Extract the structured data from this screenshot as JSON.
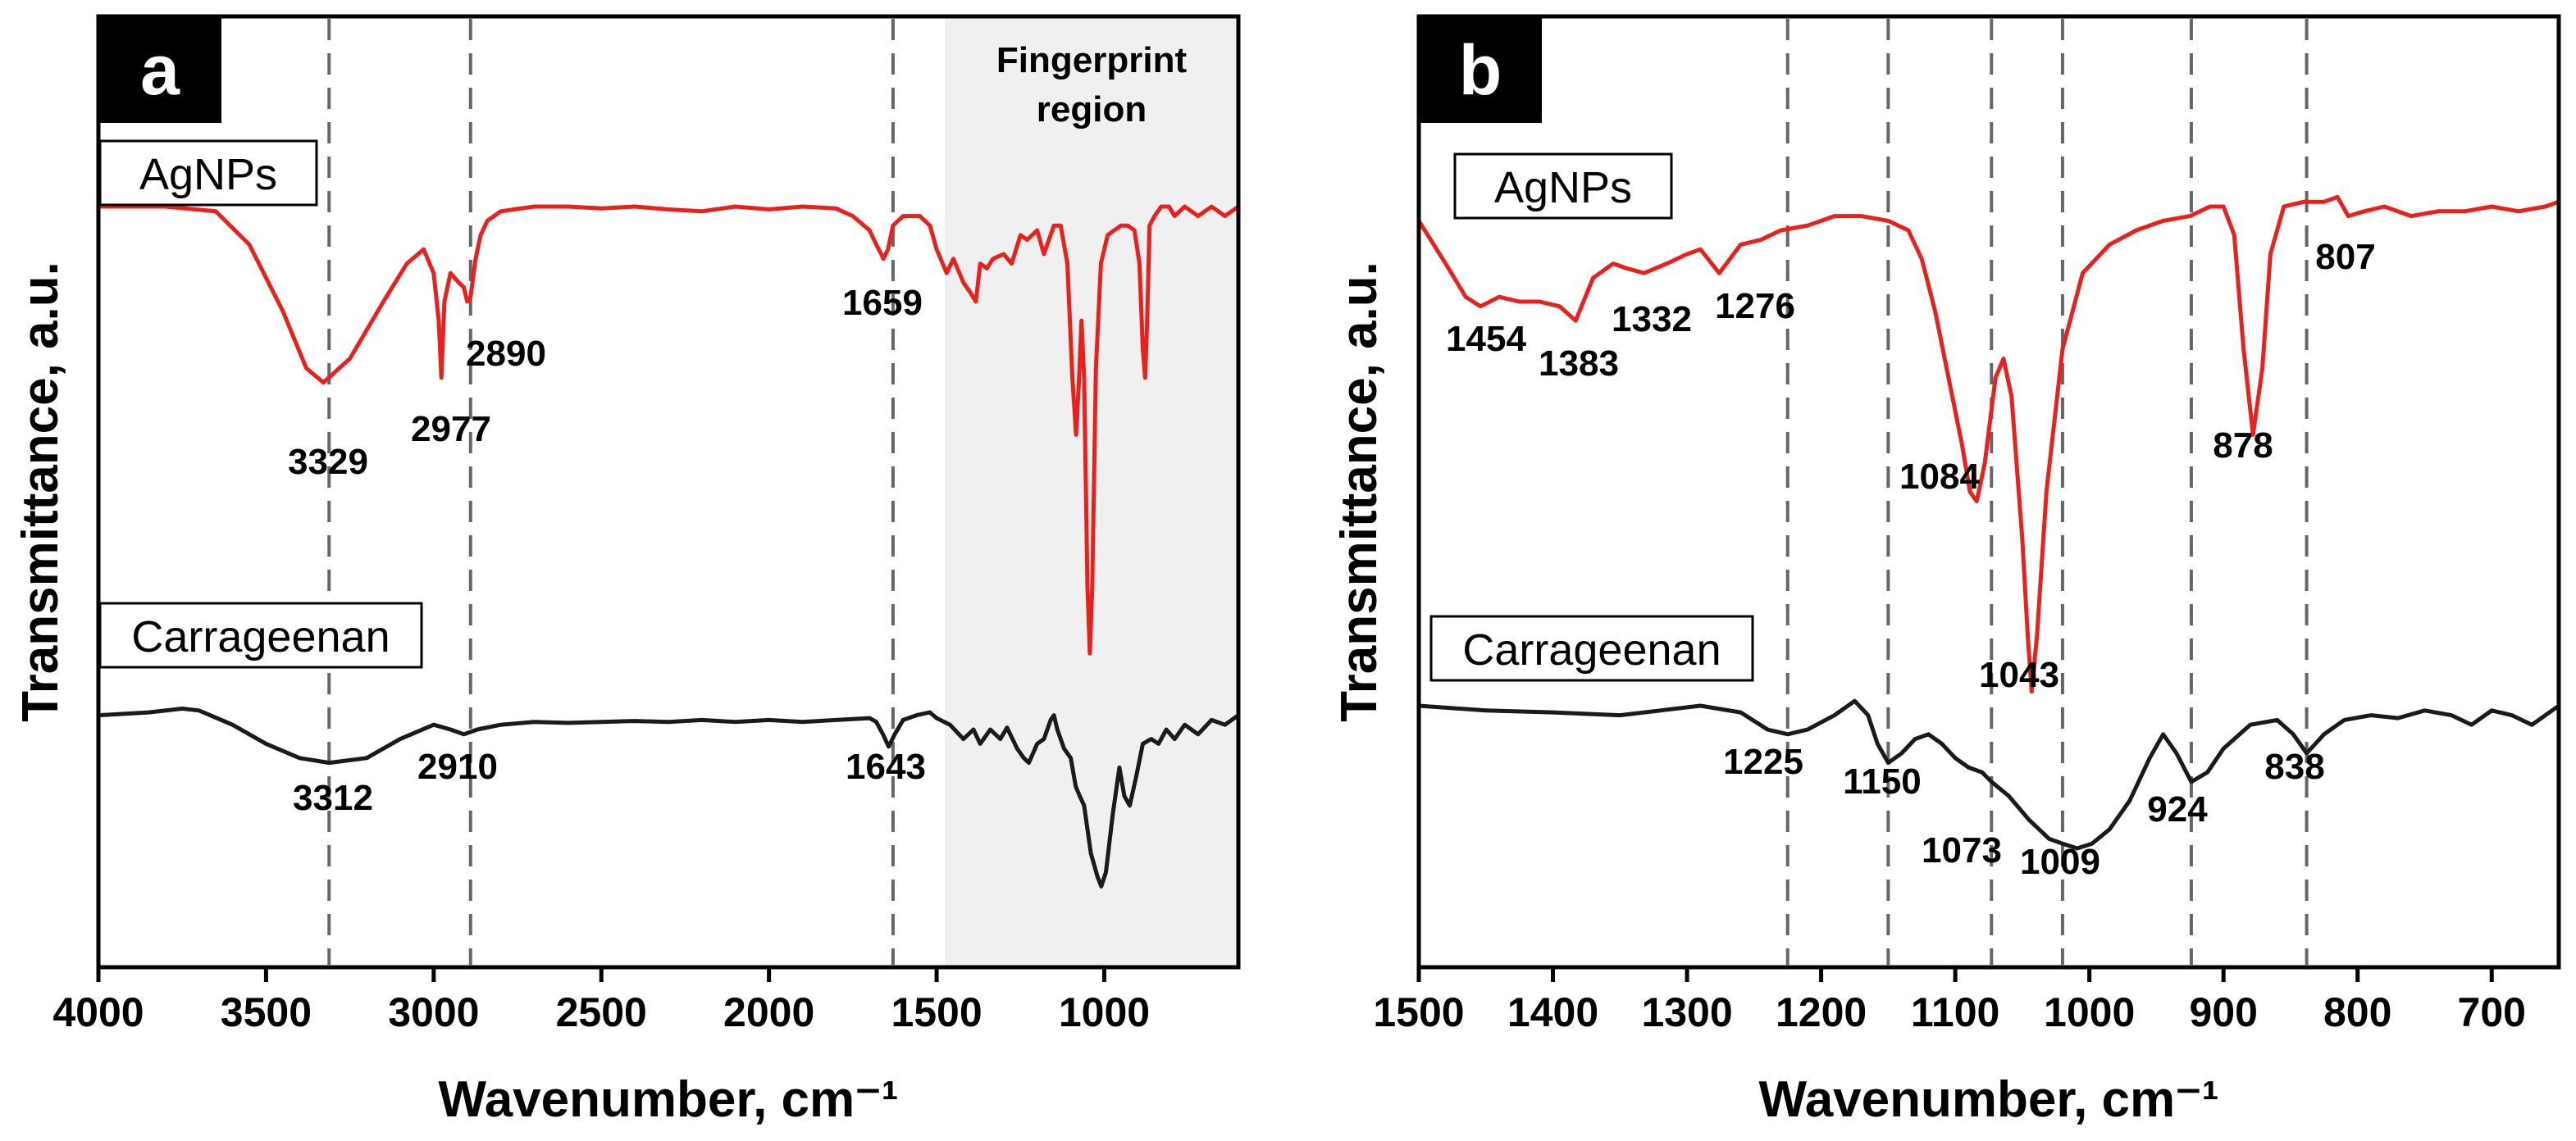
{
  "chart_data": [
    {
      "type": "line",
      "panel": "a",
      "xlabel": "Wavenumber, cm⁻¹",
      "ylabel": "Transmittance, a.u.",
      "xlim": [
        4000,
        600
      ],
      "ylim": [
        0,
        1
      ],
      "xticks": [
        4000,
        3500,
        3000,
        2500,
        2000,
        1500,
        1000
      ],
      "xtick_labels": [
        "4000",
        "3500",
        "3000",
        "2500",
        "2000",
        "1500",
        "1000"
      ],
      "region": {
        "from": 1500,
        "to": 600,
        "label_line1": "Fingerprint",
        "label_line2": "region"
      },
      "dashed_lines": [
        3312,
        2890,
        1630
      ],
      "series": [
        {
          "name": "AgNPs",
          "color": "#e8211c",
          "x": [
            4000,
            3800,
            3650,
            3550,
            3450,
            3380,
            3329,
            3250,
            3150,
            3080,
            3030,
            3000,
            2985,
            2977,
            2968,
            2950,
            2925,
            2910,
            2900,
            2890,
            2875,
            2860,
            2840,
            2800,
            2700,
            2600,
            2500,
            2400,
            2300,
            2200,
            2100,
            2000,
            1900,
            1800,
            1750,
            1700,
            1680,
            1665,
            1659,
            1645,
            1630,
            1600,
            1550,
            1520,
            1500,
            1470,
            1450,
            1420,
            1400,
            1383,
            1370,
            1350,
            1332,
            1300,
            1276,
            1250,
            1230,
            1200,
            1180,
            1150,
            1130,
            1110,
            1095,
            1084,
            1075,
            1068,
            1060,
            1050,
            1043,
            1036,
            1025,
            1010,
            990,
            970,
            950,
            930,
            910,
            895,
            885,
            878,
            872,
            865,
            850,
            830,
            807,
            790,
            760,
            720,
            680,
            640,
            600
          ],
          "y": [
            0.8,
            0.8,
            0.795,
            0.76,
            0.69,
            0.63,
            0.615,
            0.64,
            0.7,
            0.74,
            0.755,
            0.73,
            0.68,
            0.62,
            0.7,
            0.73,
            0.72,
            0.715,
            0.7,
            0.705,
            0.745,
            0.77,
            0.785,
            0.795,
            0.8,
            0.8,
            0.798,
            0.8,
            0.797,
            0.795,
            0.8,
            0.797,
            0.8,
            0.798,
            0.79,
            0.775,
            0.76,
            0.75,
            0.745,
            0.755,
            0.78,
            0.79,
            0.79,
            0.78,
            0.755,
            0.73,
            0.745,
            0.72,
            0.71,
            0.7,
            0.74,
            0.735,
            0.745,
            0.75,
            0.74,
            0.77,
            0.765,
            0.775,
            0.75,
            0.78,
            0.78,
            0.74,
            0.62,
            0.56,
            0.62,
            0.68,
            0.62,
            0.4,
            0.33,
            0.4,
            0.63,
            0.74,
            0.77,
            0.775,
            0.78,
            0.78,
            0.775,
            0.74,
            0.65,
            0.62,
            0.68,
            0.78,
            0.79,
            0.8,
            0.8,
            0.79,
            0.8,
            0.79,
            0.8,
            0.79,
            0.8
          ]
        },
        {
          "name": "Carrageenan",
          "color": "#1a1a1a",
          "x": [
            4000,
            3850,
            3750,
            3700,
            3600,
            3500,
            3400,
            3312,
            3200,
            3100,
            3000,
            2950,
            2910,
            2870,
            2800,
            2700,
            2600,
            2500,
            2400,
            2300,
            2200,
            2100,
            2000,
            1900,
            1800,
            1700,
            1680,
            1660,
            1643,
            1625,
            1600,
            1560,
            1520,
            1500,
            1460,
            1420,
            1390,
            1370,
            1340,
            1310,
            1290,
            1260,
            1240,
            1225,
            1200,
            1180,
            1160,
            1150,
            1140,
            1120,
            1100,
            1085,
            1073,
            1060,
            1040,
            1020,
            1009,
            995,
            975,
            955,
            940,
            924,
            905,
            885,
            860,
            838,
            815,
            790,
            760,
            720,
            680,
            640,
            600
          ],
          "y": [
            0.265,
            0.268,
            0.272,
            0.27,
            0.255,
            0.235,
            0.22,
            0.215,
            0.22,
            0.24,
            0.255,
            0.25,
            0.245,
            0.25,
            0.255,
            0.258,
            0.257,
            0.258,
            0.259,
            0.258,
            0.26,
            0.258,
            0.26,
            0.258,
            0.26,
            0.262,
            0.258,
            0.245,
            0.232,
            0.245,
            0.26,
            0.265,
            0.268,
            0.262,
            0.255,
            0.24,
            0.25,
            0.235,
            0.25,
            0.24,
            0.252,
            0.23,
            0.22,
            0.215,
            0.235,
            0.24,
            0.26,
            0.265,
            0.25,
            0.23,
            0.22,
            0.19,
            0.18,
            0.17,
            0.12,
            0.095,
            0.085,
            0.1,
            0.16,
            0.21,
            0.18,
            0.17,
            0.2,
            0.235,
            0.24,
            0.235,
            0.25,
            0.24,
            0.255,
            0.245,
            0.26,
            0.255,
            0.265
          ]
        }
      ],
      "annotations": [
        {
          "text": "3329",
          "series": "AgNPs"
        },
        {
          "text": "2977",
          "series": "AgNPs"
        },
        {
          "text": "2890",
          "series": "AgNPs"
        },
        {
          "text": "1659",
          "series": "AgNPs"
        },
        {
          "text": "3312",
          "series": "Carrageenan"
        },
        {
          "text": "2910",
          "series": "Carrageenan"
        },
        {
          "text": "1643",
          "series": "Carrageenan"
        }
      ]
    },
    {
      "type": "line",
      "panel": "b",
      "xlabel": "Wavenumber, cm⁻¹",
      "ylabel": "Transmittance, a.u.",
      "xlim": [
        1500,
        650
      ],
      "ylim": [
        0,
        1
      ],
      "xticks": [
        1500,
        1400,
        1300,
        1200,
        1100,
        1000,
        900,
        800,
        700
      ],
      "xtick_labels": [
        "1500",
        "1400",
        "1300",
        "1200",
        "1100",
        "1000",
        "900",
        "800",
        "700"
      ],
      "dashed_lines": [
        1225,
        1150,
        1073,
        1020,
        924,
        838
      ],
      "series": [
        {
          "name": "AgNPs",
          "color": "#e8211c",
          "x": [
            1500,
            1480,
            1465,
            1454,
            1440,
            1425,
            1410,
            1395,
            1383,
            1370,
            1355,
            1345,
            1332,
            1315,
            1300,
            1290,
            1276,
            1260,
            1245,
            1230,
            1210,
            1190,
            1170,
            1150,
            1135,
            1125,
            1115,
            1105,
            1095,
            1089,
            1084,
            1078,
            1070,
            1064,
            1058,
            1050,
            1046,
            1043,
            1039,
            1032,
            1020,
            1005,
            985,
            965,
            945,
            925,
            910,
            900,
            892,
            885,
            878,
            871,
            865,
            855,
            840,
            825,
            815,
            807,
            795,
            780,
            760,
            740,
            720,
            700,
            680,
            660,
            650
          ],
          "y": [
            0.785,
            0.74,
            0.705,
            0.695,
            0.705,
            0.7,
            0.7,
            0.695,
            0.68,
            0.725,
            0.74,
            0.735,
            0.73,
            0.74,
            0.75,
            0.755,
            0.73,
            0.76,
            0.765,
            0.775,
            0.78,
            0.79,
            0.79,
            0.785,
            0.775,
            0.745,
            0.69,
            0.62,
            0.55,
            0.5,
            0.49,
            0.53,
            0.62,
            0.64,
            0.6,
            0.45,
            0.35,
            0.29,
            0.35,
            0.5,
            0.65,
            0.73,
            0.76,
            0.775,
            0.785,
            0.79,
            0.8,
            0.8,
            0.77,
            0.65,
            0.56,
            0.63,
            0.75,
            0.8,
            0.805,
            0.805,
            0.81,
            0.79,
            0.795,
            0.8,
            0.79,
            0.795,
            0.795,
            0.8,
            0.795,
            0.8,
            0.805
          ]
        },
        {
          "name": "Carrageenan",
          "color": "#1a1a1a",
          "x": [
            1500,
            1450,
            1400,
            1350,
            1320,
            1290,
            1260,
            1240,
            1225,
            1210,
            1190,
            1175,
            1165,
            1158,
            1150,
            1140,
            1130,
            1120,
            1110,
            1100,
            1090,
            1080,
            1073,
            1060,
            1045,
            1030,
            1020,
            1009,
            998,
            985,
            970,
            955,
            945,
            935,
            924,
            912,
            900,
            880,
            860,
            848,
            838,
            825,
            810,
            790,
            770,
            750,
            730,
            715,
            700,
            685,
            670,
            650
          ],
          "y": [
            0.275,
            0.27,
            0.268,
            0.265,
            0.27,
            0.275,
            0.268,
            0.25,
            0.245,
            0.25,
            0.265,
            0.28,
            0.265,
            0.235,
            0.215,
            0.225,
            0.24,
            0.245,
            0.235,
            0.22,
            0.21,
            0.205,
            0.195,
            0.18,
            0.155,
            0.135,
            0.13,
            0.125,
            0.13,
            0.145,
            0.175,
            0.22,
            0.245,
            0.225,
            0.195,
            0.205,
            0.23,
            0.255,
            0.26,
            0.245,
            0.225,
            0.245,
            0.26,
            0.265,
            0.262,
            0.27,
            0.265,
            0.255,
            0.27,
            0.265,
            0.255,
            0.275
          ]
        }
      ],
      "annotations": [
        {
          "text": "1454",
          "series": "AgNPs"
        },
        {
          "text": "1383",
          "series": "AgNPs"
        },
        {
          "text": "1332",
          "series": "AgNPs"
        },
        {
          "text": "1276",
          "series": "AgNPs"
        },
        {
          "text": "1084",
          "series": "AgNPs"
        },
        {
          "text": "1043",
          "series": "AgNPs"
        },
        {
          "text": "878",
          "series": "AgNPs"
        },
        {
          "text": "807",
          "series": "AgNPs"
        },
        {
          "text": "1225",
          "series": "Carrageenan"
        },
        {
          "text": "1150",
          "series": "Carrageenan"
        },
        {
          "text": "1073",
          "series": "Carrageenan"
        },
        {
          "text": "1009",
          "series": "Carrageenan"
        },
        {
          "text": "924",
          "series": "Carrageenan"
        },
        {
          "text": "838",
          "series": "Carrageenan"
        }
      ]
    }
  ]
}
